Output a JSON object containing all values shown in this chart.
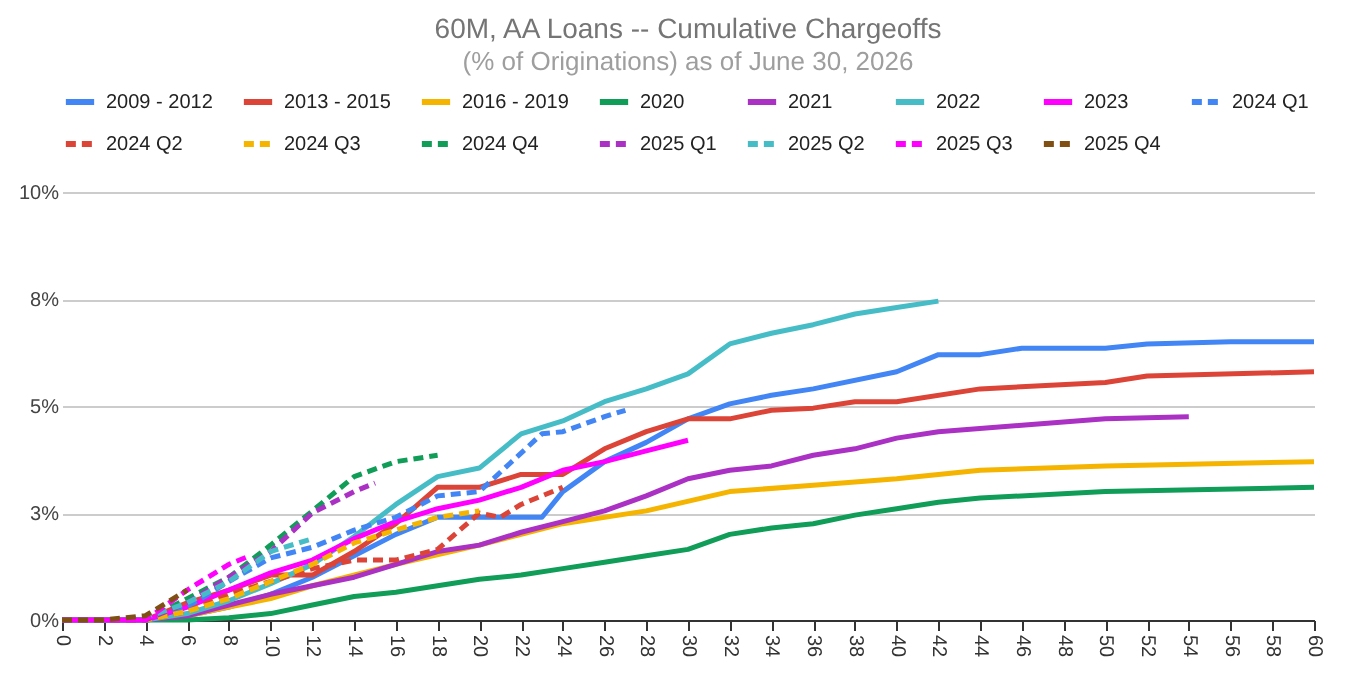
{
  "chart_data": {
    "type": "line",
    "title": "60M, AA Loans -- Cumulative Chargeoffs",
    "subtitle": "(% of Originations) as of June 30, 2026",
    "xlim": [
      0,
      60
    ],
    "xticks": [
      0,
      2,
      4,
      6,
      8,
      10,
      12,
      14,
      16,
      18,
      20,
      22,
      24,
      26,
      28,
      30,
      32,
      34,
      36,
      38,
      40,
      42,
      44,
      46,
      48,
      50,
      52,
      54,
      56,
      58,
      60
    ],
    "ylim": [
      0,
      10
    ],
    "yticks": [
      {
        "value": 0,
        "label": "0%"
      },
      {
        "value": 2.5,
        "label": "3%"
      },
      {
        "value": 5,
        "label": "5%"
      },
      {
        "value": 7.5,
        "label": "8%"
      },
      {
        "value": 10,
        "label": "10%"
      }
    ],
    "grid": "y",
    "legend": "top",
    "line_style": "solid",
    "series": [
      {
        "name": "2009 - 2012",
        "color": "#4285f4",
        "x": [
          0,
          2,
          4,
          6,
          8,
          10,
          12,
          14,
          16,
          18,
          20,
          22,
          23,
          24,
          26,
          28,
          30,
          32,
          34,
          36,
          40,
          42,
          44,
          46,
          50,
          52,
          56,
          60
        ],
        "values": [
          0,
          0,
          0,
          0.1,
          0.3,
          0.6,
          1.0,
          1.5,
          2.0,
          2.4,
          2.4,
          2.4,
          2.4,
          3.0,
          3.7,
          4.15,
          4.7,
          5.05,
          5.25,
          5.4,
          5.8,
          6.2,
          6.2,
          6.35,
          6.35,
          6.45,
          6.5,
          6.5
        ]
      },
      {
        "name": "2013 - 2015",
        "color": "#db4437",
        "x": [
          0,
          2,
          4,
          6,
          8,
          10,
          12,
          14,
          16,
          18,
          20,
          22,
          24,
          26,
          28,
          30,
          32,
          34,
          36,
          38,
          40,
          44,
          50,
          52,
          60
        ],
        "values": [
          0,
          0,
          0,
          0.4,
          0.7,
          1.05,
          1.05,
          1.6,
          2.25,
          3.1,
          3.1,
          3.4,
          3.4,
          4.0,
          4.4,
          4.7,
          4.7,
          4.9,
          4.95,
          5.1,
          5.1,
          5.4,
          5.55,
          5.7,
          5.8
        ]
      },
      {
        "name": "2016 - 2019",
        "color": "#f4b400",
        "x": [
          0,
          2,
          4,
          6,
          8,
          10,
          12,
          16,
          20,
          24,
          28,
          32,
          36,
          40,
          44,
          50,
          60
        ],
        "values": [
          0,
          0,
          0,
          0.1,
          0.3,
          0.5,
          0.8,
          1.3,
          1.75,
          2.25,
          2.55,
          3.0,
          3.15,
          3.3,
          3.5,
          3.6,
          3.7
        ]
      },
      {
        "name": "2020",
        "color": "#0f9d58",
        "x": [
          0,
          2,
          4,
          6,
          8,
          10,
          12,
          14,
          16,
          20,
          22,
          24,
          26,
          28,
          30,
          32,
          34,
          36,
          38,
          40,
          42,
          44,
          50,
          60
        ],
        "values": [
          0,
          0,
          0,
          0,
          0.05,
          0.15,
          0.35,
          0.55,
          0.65,
          0.95,
          1.05,
          1.2,
          1.35,
          1.5,
          1.65,
          2.0,
          2.15,
          2.25,
          2.45,
          2.6,
          2.75,
          2.85,
          3.0,
          3.1
        ]
      },
      {
        "name": "2021",
        "color": "#ab30c4",
        "x": [
          0,
          2,
          4,
          6,
          8,
          10,
          12,
          14,
          16,
          18,
          20,
          22,
          24,
          26,
          28,
          30,
          32,
          34,
          36,
          38,
          40,
          42,
          46,
          50,
          54
        ],
        "values": [
          0,
          0,
          0,
          0.1,
          0.35,
          0.6,
          0.8,
          1.0,
          1.3,
          1.6,
          1.75,
          2.05,
          2.3,
          2.55,
          2.9,
          3.3,
          3.5,
          3.6,
          3.85,
          4.0,
          4.25,
          4.4,
          4.55,
          4.7,
          4.75
        ]
      },
      {
        "name": "2022",
        "color": "#46bdc6",
        "x": [
          0,
          2,
          4,
          6,
          8,
          10,
          12,
          14,
          16,
          18,
          20,
          22,
          24,
          26,
          28,
          30,
          32,
          34,
          36,
          38,
          40,
          42
        ],
        "values": [
          0,
          0,
          0,
          0.15,
          0.45,
          0.85,
          1.3,
          1.95,
          2.7,
          3.35,
          3.55,
          4.35,
          4.65,
          5.1,
          5.4,
          5.75,
          6.45,
          6.7,
          6.9,
          7.15,
          7.3,
          7.45
        ]
      },
      {
        "name": "2023",
        "color": "#ff00ff",
        "x": [
          0,
          2,
          4,
          6,
          8,
          10,
          12,
          14,
          16,
          18,
          20,
          22,
          24,
          26,
          28,
          30
        ],
        "values": [
          0,
          0,
          0,
          0.3,
          0.7,
          1.1,
          1.4,
          1.9,
          2.3,
          2.6,
          2.8,
          3.1,
          3.5,
          3.7,
          3.95,
          4.2
        ]
      },
      {
        "name": "2024 Q1",
        "color": "#4285f4",
        "line_style": "dashed",
        "x": [
          0,
          2,
          4,
          6,
          8,
          10,
          12,
          14,
          16,
          18,
          20,
          22,
          23,
          24,
          26,
          27
        ],
        "values": [
          0,
          0,
          0,
          0.3,
          0.9,
          1.45,
          1.7,
          2.1,
          2.4,
          2.9,
          3.0,
          3.9,
          4.35,
          4.4,
          4.75,
          4.9
        ]
      },
      {
        "name": "2024 Q2",
        "color": "#db4437",
        "line_style": "dashed",
        "x": [
          0,
          2,
          4,
          6,
          8,
          10,
          12,
          14,
          16,
          18,
          20,
          21,
          22,
          24
        ],
        "values": [
          0,
          0,
          0,
          0.2,
          0.6,
          0.9,
          1.2,
          1.4,
          1.4,
          1.65,
          2.5,
          2.4,
          2.7,
          3.1
        ]
      },
      {
        "name": "2024 Q3",
        "color": "#f4b400",
        "line_style": "dashed",
        "x": [
          0,
          2,
          4,
          6,
          8,
          10,
          12,
          14,
          16,
          18,
          20
        ],
        "values": [
          0,
          0,
          0,
          0.2,
          0.5,
          0.9,
          1.3,
          1.8,
          2.1,
          2.4,
          2.55
        ]
      },
      {
        "name": "2024 Q4",
        "color": "#0f9d58",
        "line_style": "dashed",
        "x": [
          0,
          2,
          4,
          6,
          8,
          10,
          12,
          14,
          16,
          18
        ],
        "values": [
          0,
          0,
          0,
          0.5,
          1.0,
          1.75,
          2.55,
          3.35,
          3.7,
          3.85
        ]
      },
      {
        "name": "2025 Q1",
        "color": "#ab30c4",
        "line_style": "dashed",
        "x": [
          0,
          2,
          4,
          6,
          8,
          10,
          12,
          14,
          15
        ],
        "values": [
          0,
          0,
          0,
          0.4,
          1.0,
          1.6,
          2.5,
          3.0,
          3.2
        ]
      },
      {
        "name": "2025 Q2",
        "color": "#46bdc6",
        "line_style": "dashed",
        "x": [
          0,
          2,
          4,
          6,
          8,
          10,
          12
        ],
        "values": [
          0,
          0,
          0.05,
          0.4,
          0.9,
          1.6,
          1.9
        ]
      },
      {
        "name": "2025 Q3",
        "color": "#ff00ff",
        "line_style": "dashed",
        "x": [
          0,
          2,
          4,
          6,
          8,
          9
        ],
        "values": [
          0,
          0,
          0,
          0.7,
          1.3,
          1.5
        ]
      },
      {
        "name": "2025 Q4",
        "color": "#7f4f14",
        "line_style": "dashed",
        "x": [
          0,
          2,
          4,
          5,
          6
        ],
        "values": [
          0,
          0,
          0.1,
          0.4,
          0.7
        ]
      }
    ]
  }
}
